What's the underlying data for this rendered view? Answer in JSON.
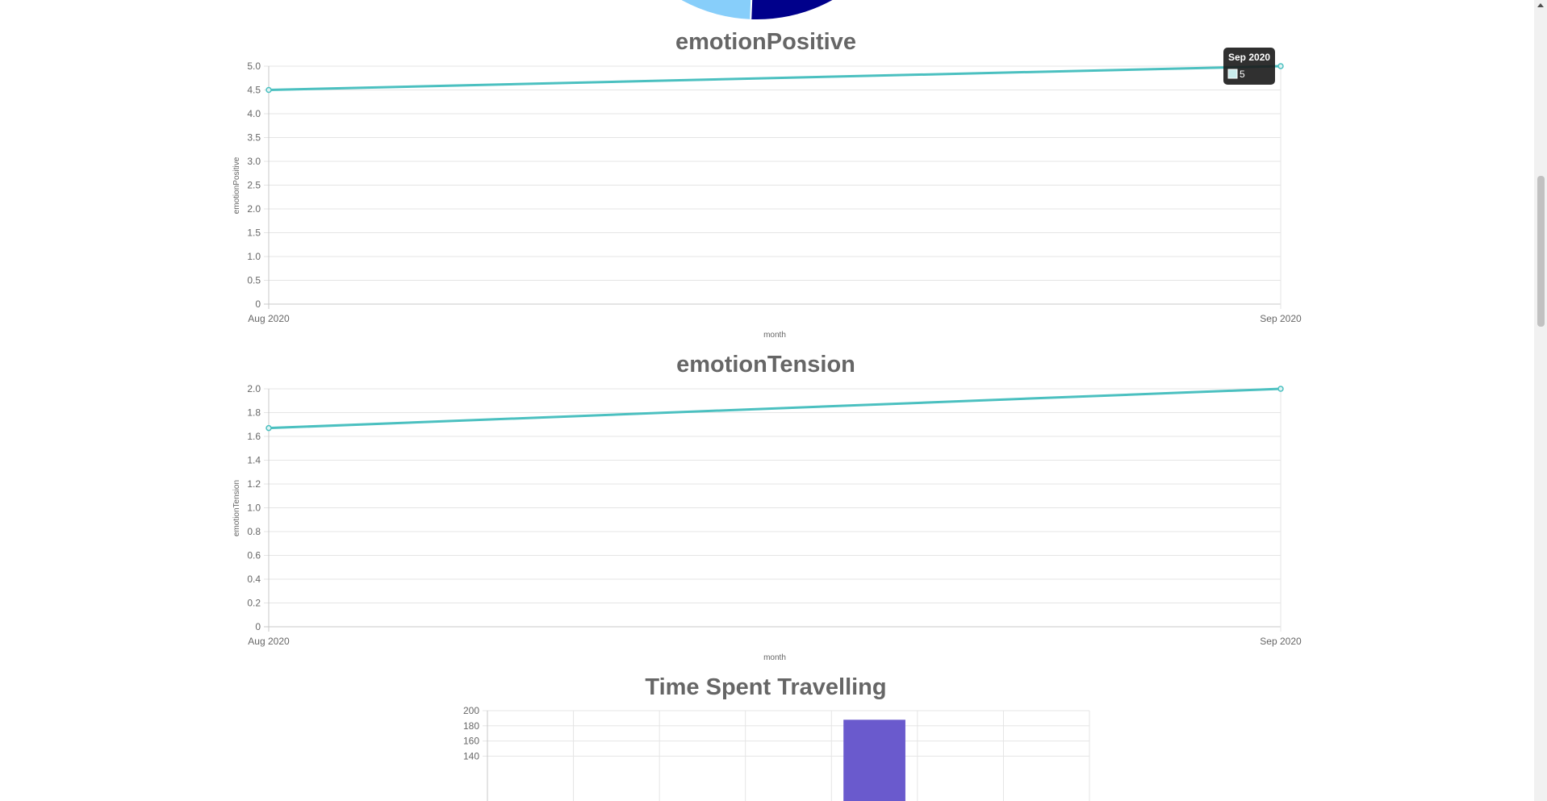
{
  "colors": {
    "line": "#4bc0c0",
    "bar": "#6a5acd",
    "pie_light": "#87cefa",
    "pie_dark": "#00008b",
    "grid": "#e5e5e5",
    "axis_text": "#666666",
    "title_text": "#666666",
    "tooltip_bg": "#1a1a1a"
  },
  "chart_data": [
    {
      "type": "line",
      "title": "emotionPositive",
      "xlabel": "month",
      "ylabel": "emotionPositive",
      "x": [
        "Aug 2020",
        "Sep 2020"
      ],
      "series": [
        {
          "values": [
            4.5,
            5
          ]
        }
      ],
      "ylim": [
        0,
        5
      ],
      "yticks": [
        "0",
        "0.5",
        "1.0",
        "1.5",
        "2.0",
        "2.5",
        "3.0",
        "3.5",
        "4.0",
        "4.5",
        "5.0"
      ],
      "grid": true,
      "tooltip": {
        "title": "Sep 2020",
        "value": "5"
      }
    },
    {
      "type": "line",
      "title": "emotionTension",
      "xlabel": "month",
      "ylabel": "emotionTension",
      "x": [
        "Aug 2020",
        "Sep 2020"
      ],
      "series": [
        {
          "values": [
            1.67,
            2
          ]
        }
      ],
      "ylim": [
        0,
        2
      ],
      "yticks": [
        "0",
        "0.2",
        "0.4",
        "0.6",
        "0.8",
        "1.0",
        "1.2",
        "1.4",
        "1.6",
        "1.8",
        "2.0"
      ],
      "grid": true
    },
    {
      "type": "bar",
      "title": "Time Spent Travelling",
      "categories": [
        "",
        "",
        "",
        "",
        "",
        "",
        ""
      ],
      "values": [
        null,
        null,
        null,
        null,
        188,
        null,
        null
      ],
      "ylim": [
        0,
        200
      ],
      "yticks": [
        "140",
        "160",
        "180",
        "200"
      ],
      "grid": true
    }
  ]
}
